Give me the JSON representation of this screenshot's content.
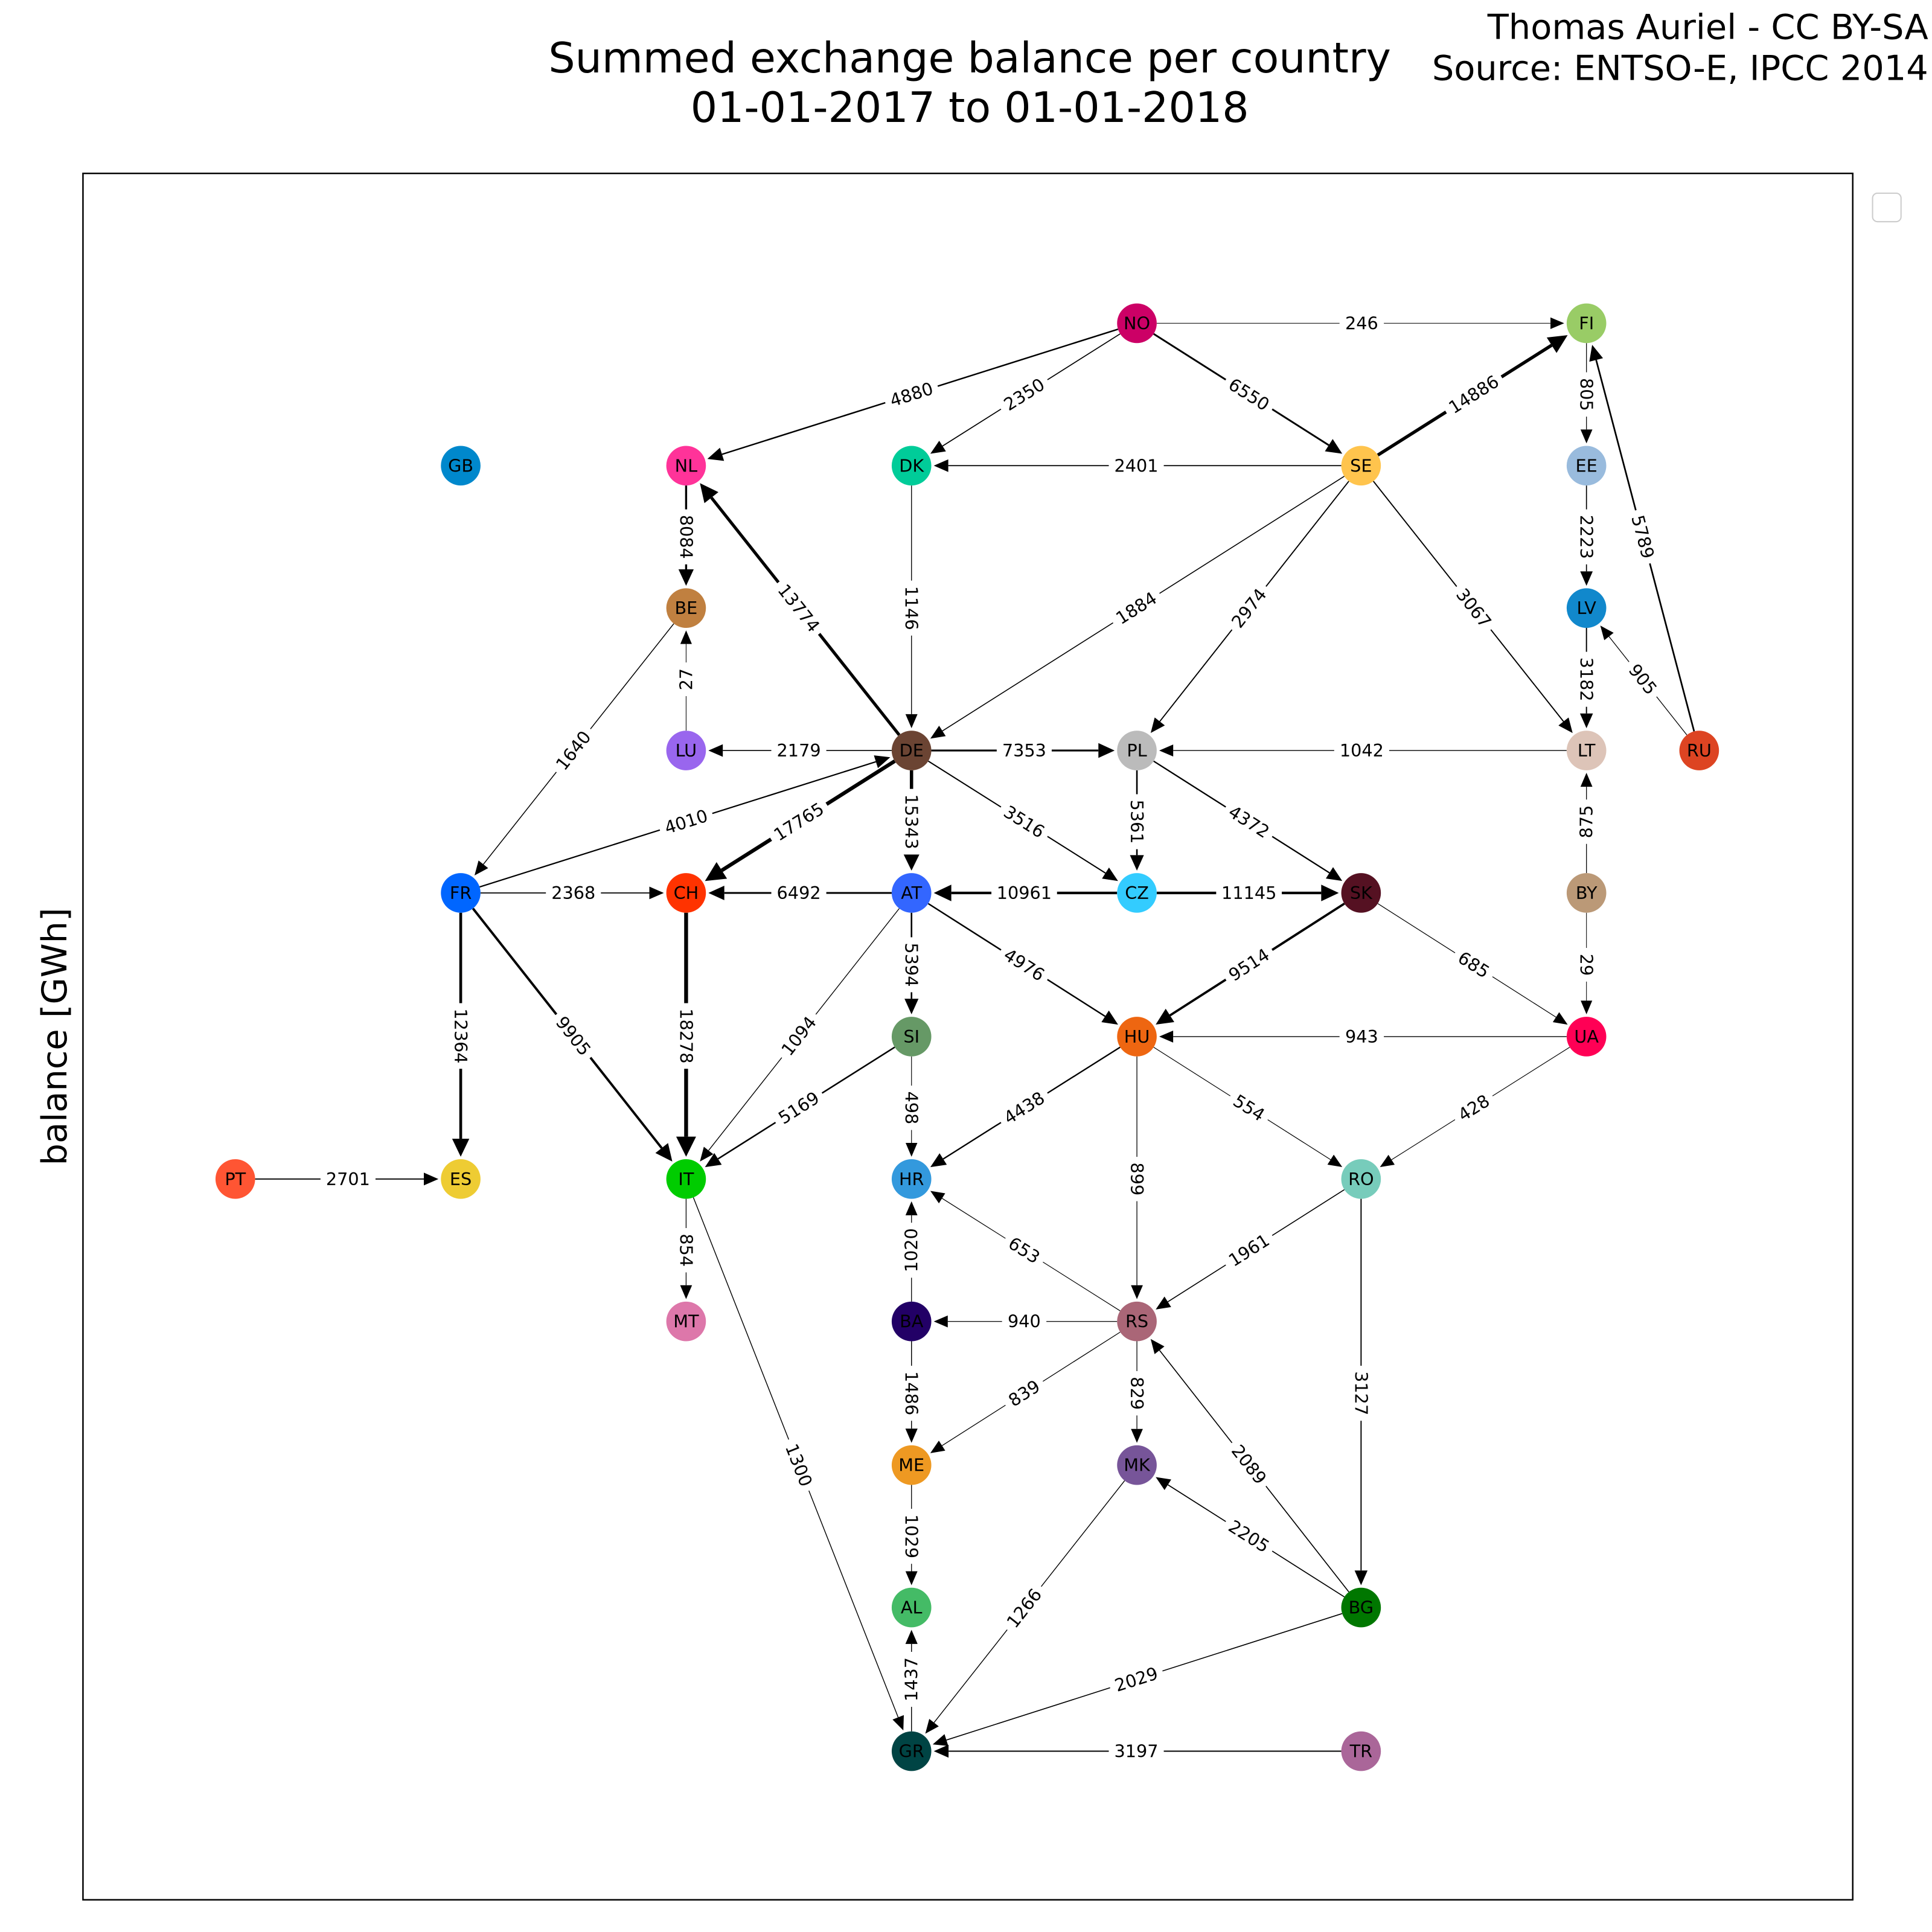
{
  "header": {
    "title": "Summed exchange balance per country",
    "subtitle": "01-01-2017 to 01-01-2018",
    "credit": "Thomas Auriel - CC BY-SA",
    "source": "Source: ENTSO-E, IPCC 2014",
    "y_label": "balance [GWh]"
  },
  "nodes": [
    {
      "label": "NO",
      "color": "#cc0066"
    },
    {
      "label": "FI",
      "color": "#99cc66"
    },
    {
      "label": "NL",
      "color": "#ff3399"
    },
    {
      "label": "DK",
      "color": "#00cc99"
    },
    {
      "label": "SE",
      "color": "#ffc44d"
    },
    {
      "label": "EE",
      "color": "#99bbdd"
    },
    {
      "label": "GB",
      "color": "#0088cc"
    },
    {
      "label": "BE",
      "color": "#c08040"
    },
    {
      "label": "LV",
      "color": "#1188cc"
    },
    {
      "label": "LU",
      "color": "#9966ee"
    },
    {
      "label": "DE",
      "color": "#6b4433"
    },
    {
      "label": "PL",
      "color": "#bbbbbb"
    },
    {
      "label": "LT",
      "color": "#ddc4b8"
    },
    {
      "label": "RU",
      "color": "#dd4422"
    },
    {
      "label": "FR",
      "color": "#0066ff"
    },
    {
      "label": "CH",
      "color": "#ff3300"
    },
    {
      "label": "AT",
      "color": "#3366ff"
    },
    {
      "label": "CZ",
      "color": "#33ccff"
    },
    {
      "label": "SK",
      "color": "#551122"
    },
    {
      "label": "BY",
      "color": "#bb9977"
    },
    {
      "label": "SI",
      "color": "#669966"
    },
    {
      "label": "HU",
      "color": "#ee6611"
    },
    {
      "label": "UA",
      "color": "#ff0055"
    },
    {
      "label": "PT",
      "color": "#ff5533"
    },
    {
      "label": "ES",
      "color": "#eecc33"
    },
    {
      "label": "IT",
      "color": "#00cc00"
    },
    {
      "label": "HR",
      "color": "#3399dd"
    },
    {
      "label": "RO",
      "color": "#77ccbb"
    },
    {
      "label": "MT",
      "color": "#dd77aa"
    },
    {
      "label": "BA",
      "color": "#220066"
    },
    {
      "label": "RS",
      "color": "#aa6677"
    },
    {
      "label": "ME",
      "color": "#ee9922"
    },
    {
      "label": "MK",
      "color": "#775599"
    },
    {
      "label": "AL",
      "color": "#44bb66"
    },
    {
      "label": "BG",
      "color": "#007700"
    },
    {
      "label": "GR",
      "color": "#004444"
    },
    {
      "label": "TR",
      "color": "#aa6699"
    }
  ],
  "edges": [
    {
      "from": "NO",
      "to": "FI",
      "value": 246
    },
    {
      "from": "NO",
      "to": "NL",
      "value": 4880
    },
    {
      "from": "NO",
      "to": "DK",
      "value": 2350
    },
    {
      "from": "NO",
      "to": "SE",
      "value": 6550
    },
    {
      "from": "SE",
      "to": "FI",
      "value": 14886
    },
    {
      "from": "SE",
      "to": "DK",
      "value": 2401
    },
    {
      "from": "FI",
      "to": "EE",
      "value": 805
    },
    {
      "from": "EE",
      "to": "LV",
      "value": 2223
    },
    {
      "from": "RU",
      "to": "FI",
      "value": 5789
    },
    {
      "from": "NL",
      "to": "BE",
      "value": 8084
    },
    {
      "from": "DK",
      "to": "DE",
      "value": 1146
    },
    {
      "from": "SE",
      "to": "DE",
      "value": 1884
    },
    {
      "from": "SE",
      "to": "PL",
      "value": 2974
    },
    {
      "from": "SE",
      "to": "LT",
      "value": 3067
    },
    {
      "from": "LV",
      "to": "LT",
      "value": 3182
    },
    {
      "from": "RU",
      "to": "LV",
      "value": 905
    },
    {
      "from": "DE",
      "to": "NL",
      "value": 13774
    },
    {
      "from": "LU",
      "to": "BE",
      "value": 27
    },
    {
      "from": "BE",
      "to": "FR",
      "value": 1640
    },
    {
      "from": "DE",
      "to": "LU",
      "value": 2179
    },
    {
      "from": "DE",
      "to": "PL",
      "value": 7353
    },
    {
      "from": "LT",
      "to": "PL",
      "value": 1042
    },
    {
      "from": "PL",
      "to": "CZ",
      "value": 5361
    },
    {
      "from": "PL",
      "to": "SK",
      "value": 4372
    },
    {
      "from": "DE",
      "to": "CH",
      "value": 17765
    },
    {
      "from": "FR",
      "to": "DE",
      "value": 4010
    },
    {
      "from": "DE",
      "to": "AT",
      "value": 15343
    },
    {
      "from": "DE",
      "to": "CZ",
      "value": 3516
    },
    {
      "from": "BY",
      "to": "LT",
      "value": 875
    },
    {
      "from": "FR",
      "to": "CH",
      "value": 2368
    },
    {
      "from": "AT",
      "to": "CH",
      "value": 6492
    },
    {
      "from": "CZ",
      "to": "AT",
      "value": 10961
    },
    {
      "from": "CZ",
      "to": "SK",
      "value": 11145
    },
    {
      "from": "FR",
      "to": "ES",
      "value": 12364
    },
    {
      "from": "FR",
      "to": "IT",
      "value": 9905
    },
    {
      "from": "CH",
      "to": "IT",
      "value": 18278
    },
    {
      "from": "AT",
      "to": "IT",
      "value": 1094
    },
    {
      "from": "AT",
      "to": "SI",
      "value": 5394
    },
    {
      "from": "AT",
      "to": "HU",
      "value": 4976
    },
    {
      "from": "SK",
      "to": "HU",
      "value": 9514
    },
    {
      "from": "SK",
      "to": "UA",
      "value": 685
    },
    {
      "from": "BY",
      "to": "UA",
      "value": 29
    },
    {
      "from": "SI",
      "to": "IT",
      "value": 5169
    },
    {
      "from": "SI",
      "to": "HR",
      "value": 498
    },
    {
      "from": "HU",
      "to": "HR",
      "value": 4438
    },
    {
      "from": "UA",
      "to": "HU",
      "value": 943
    },
    {
      "from": "HU",
      "to": "RO",
      "value": 554
    },
    {
      "from": "UA",
      "to": "RO",
      "value": 428
    },
    {
      "from": "HU",
      "to": "RS",
      "value": 899
    },
    {
      "from": "PT",
      "to": "ES",
      "value": 2701
    },
    {
      "from": "IT",
      "to": "MT",
      "value": 854
    },
    {
      "from": "IT",
      "to": "GR",
      "value": 1300
    },
    {
      "from": "BA",
      "to": "HR",
      "value": 1020
    },
    {
      "from": "RS",
      "to": "HR",
      "value": 653
    },
    {
      "from": "RO",
      "to": "RS",
      "value": 1961
    },
    {
      "from": "RO",
      "to": "BG",
      "value": 3127
    },
    {
      "from": "RS",
      "to": "BA",
      "value": 940
    },
    {
      "from": "BA",
      "to": "ME",
      "value": 1486
    },
    {
      "from": "RS",
      "to": "ME",
      "value": 839
    },
    {
      "from": "RS",
      "to": "MK",
      "value": 829
    },
    {
      "from": "ME",
      "to": "AL",
      "value": 1029
    },
    {
      "from": "MK",
      "to": "GR",
      "value": 1266
    },
    {
      "from": "BG",
      "to": "MK",
      "value": 2205
    },
    {
      "from": "BG",
      "to": "RS",
      "value": 2089
    },
    {
      "from": "GR",
      "to": "AL",
      "value": 1437
    },
    {
      "from": "BG",
      "to": "GR",
      "value": 2029
    },
    {
      "from": "TR",
      "to": "GR",
      "value": 3197
    }
  ]
}
